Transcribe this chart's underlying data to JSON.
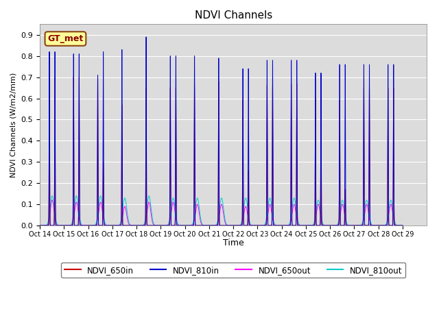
{
  "title": "NDVI Channels",
  "ylabel": "NDVI Channels (W/m2/mm)",
  "xlabel": "Time",
  "ylim": [
    0.0,
    0.95
  ],
  "yticks": [
    0.0,
    0.1,
    0.2,
    0.3,
    0.4,
    0.5,
    0.6,
    0.7,
    0.8,
    0.9
  ],
  "bg_color": "#dcdcdc",
  "fig_color": "#ffffff",
  "color_650in": "#cc0000",
  "color_810in": "#0000cc",
  "color_650out": "#ff00ff",
  "color_810out": "#00cccc",
  "gt_met_label": "GT_met",
  "start_day": 14,
  "end_day": 29,
  "n_days": 15,
  "peak_810in_am": [
    0.82,
    0.81,
    0.71,
    0.83,
    0.89,
    0.8,
    0.8,
    0.79,
    0.74,
    0.78,
    0.78,
    0.72,
    0.76,
    0.76,
    0.76
  ],
  "peak_810in_pm": [
    0.82,
    0.81,
    0.82,
    0.0,
    0.0,
    0.8,
    0.0,
    0.0,
    0.74,
    0.78,
    0.78,
    0.72,
    0.76,
    0.76,
    0.76
  ],
  "peak_650in_am": [
    0.7,
    0.7,
    0.7,
    0.57,
    0.65,
    0.65,
    0.66,
    0.68,
    0.59,
    0.66,
    0.67,
    0.6,
    0.59,
    0.65,
    0.65
  ],
  "peak_650in_pm": [
    0.7,
    0.7,
    0.3,
    0.0,
    0.0,
    0.65,
    0.0,
    0.0,
    0.26,
    0.66,
    0.67,
    0.6,
    0.17,
    0.65,
    0.65
  ],
  "peak_810out": [
    0.14,
    0.14,
    0.14,
    0.13,
    0.14,
    0.13,
    0.13,
    0.13,
    0.13,
    0.13,
    0.13,
    0.12,
    0.12,
    0.12,
    0.12
  ],
  "peak_650out": [
    0.12,
    0.11,
    0.11,
    0.09,
    0.11,
    0.11,
    0.1,
    0.1,
    0.09,
    0.1,
    0.1,
    0.1,
    0.1,
    0.1,
    0.1
  ]
}
